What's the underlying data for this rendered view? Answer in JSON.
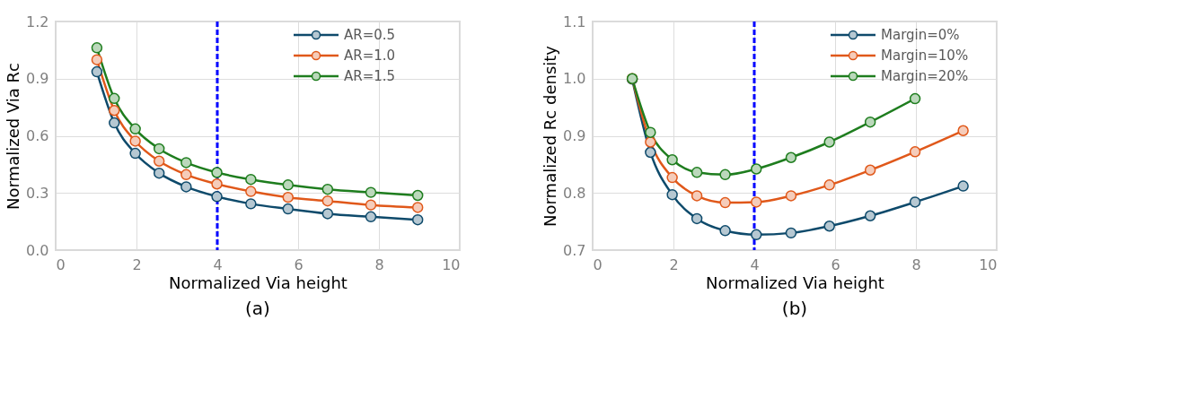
{
  "chart_data": [
    {
      "type": "line",
      "xlabel": "Normalized Via height",
      "ylabel": "Normalized Via Rc",
      "annotations": [
        "(a)"
      ],
      "xlim": [
        0,
        10
      ],
      "xticks": [
        0,
        2,
        4,
        6,
        8,
        10
      ],
      "ylim": [
        0.0,
        1.2
      ],
      "yticks": [
        {
          "value": 0,
          "label": "0.0"
        },
        0.3,
        0.6,
        0.9,
        1.2
      ],
      "x": [
        1.02,
        1.45,
        1.97,
        2.56,
        3.23,
        3.99,
        4.83,
        5.75,
        6.73,
        7.8,
        8.96
      ],
      "series": [
        {
          "name": "AR=0.5",
          "color": "#0e4a6b",
          "values": [
            0.936,
            0.668,
            0.508,
            0.404,
            0.332,
            0.281,
            0.243,
            0.216,
            0.191,
            0.175,
            0.159
          ]
        },
        {
          "name": "AR=1.0",
          "color": "#e0581a",
          "values": [
            0.999,
            0.733,
            0.572,
            0.467,
            0.396,
            0.347,
            0.308,
            0.277,
            0.258,
            0.237,
            0.224
          ]
        },
        {
          "name": "AR=1.5",
          "color": "#1e7d1e",
          "values": [
            1.062,
            0.796,
            0.636,
            0.532,
            0.459,
            0.407,
            0.371,
            0.342,
            0.319,
            0.303,
            0.287
          ]
        }
      ],
      "ref_lines": [
        {
          "axis": "x",
          "value": 4,
          "color": "#0000ff",
          "line_style": "dashed"
        }
      ],
      "grid": true,
      "legend": "top right",
      "marker": "circle",
      "line_style": "solid"
    },
    {
      "type": "line",
      "xlabel": "Normalized Via height",
      "ylabel": "Normalized Rc density",
      "annotations": [
        "(b)"
      ],
      "xlim": [
        0,
        10
      ],
      "xticks": [
        0,
        2,
        4,
        6,
        8,
        10
      ],
      "ylim": [
        0.7,
        1.1
      ],
      "yticks": [
        0.7,
        0.8,
        0.9,
        {
          "value": 1,
          "label": "1.0"
        },
        1.1
      ],
      "x": [
        0.98,
        1.43,
        1.97,
        2.58,
        3.28,
        4.05,
        4.91,
        5.86,
        6.87,
        7.98,
        9.17
      ],
      "series": [
        {
          "name": "Margin=0%",
          "color": "#0e4a6b",
          "values": [
            0.999,
            0.871,
            0.797,
            0.755,
            0.734,
            0.727,
            0.73,
            0.742,
            0.76,
            0.784,
            0.812
          ]
        },
        {
          "name": "Margin=10%",
          "color": "#e0581a",
          "values": [
            1.0,
            0.889,
            0.827,
            0.795,
            0.783,
            0.784,
            0.795,
            0.814,
            0.84,
            0.872,
            0.909
          ]
        },
        {
          "name": "Margin=20%",
          "color": "#1e7d1e",
          "values": [
            1.0,
            0.906,
            0.858,
            0.836,
            0.832,
            0.842,
            0.862,
            0.889,
            0.924,
            0.965,
            null
          ]
        }
      ],
      "ref_lines": [
        {
          "axis": "x",
          "value": 4,
          "color": "#0000ff",
          "line_style": "dashed"
        }
      ],
      "grid": true,
      "legend": "top right",
      "marker": "circle",
      "line_style": "solid"
    }
  ]
}
